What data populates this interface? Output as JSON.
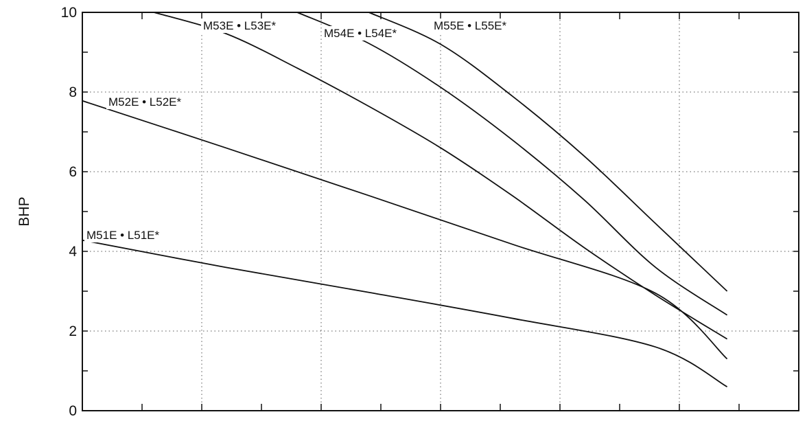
{
  "chart_data": {
    "type": "line",
    "title": "",
    "xlabel": "",
    "ylabel": "BHP",
    "ylim": [
      0,
      10
    ],
    "xlim": [
      0,
      1
    ],
    "y_ticks": [
      "0",
      "2",
      "4",
      "6",
      "8",
      "10"
    ],
    "grid": true,
    "grid_style": "dotted",
    "line_color": "#111111",
    "series": [
      {
        "name": "M51E • L51E*",
        "x": [
          0,
          0.2,
          0.4,
          0.6,
          0.8,
          0.9
        ],
        "y": [
          4.28,
          3.6,
          2.97,
          2.32,
          1.6,
          0.6
        ]
      },
      {
        "name": "M52E • L52E*",
        "x": [
          0,
          0.2,
          0.4,
          0.6,
          0.8,
          0.9
        ],
        "y": [
          7.78,
          6.6,
          5.4,
          4.18,
          2.95,
          1.3
        ]
      },
      {
        "name": "M53E • L53E*",
        "x": [
          0.1,
          0.2,
          0.3,
          0.4,
          0.5,
          0.6,
          0.7,
          0.8,
          0.9
        ],
        "y": [
          10.0,
          9.47,
          8.6,
          7.64,
          6.6,
          5.4,
          4.1,
          2.9,
          1.8
        ]
      },
      {
        "name": "M54E • L54E*",
        "x": [
          0.3,
          0.4,
          0.5,
          0.6,
          0.7,
          0.8,
          0.9
        ],
        "y": [
          10.0,
          9.22,
          8.12,
          6.8,
          5.3,
          3.6,
          2.4
        ]
      },
      {
        "name": "M55E • L55E*",
        "x": [
          0.4,
          0.5,
          0.6,
          0.7,
          0.8,
          0.9
        ],
        "y": [
          10.0,
          9.2,
          7.9,
          6.4,
          4.7,
          3.0
        ]
      }
    ]
  }
}
